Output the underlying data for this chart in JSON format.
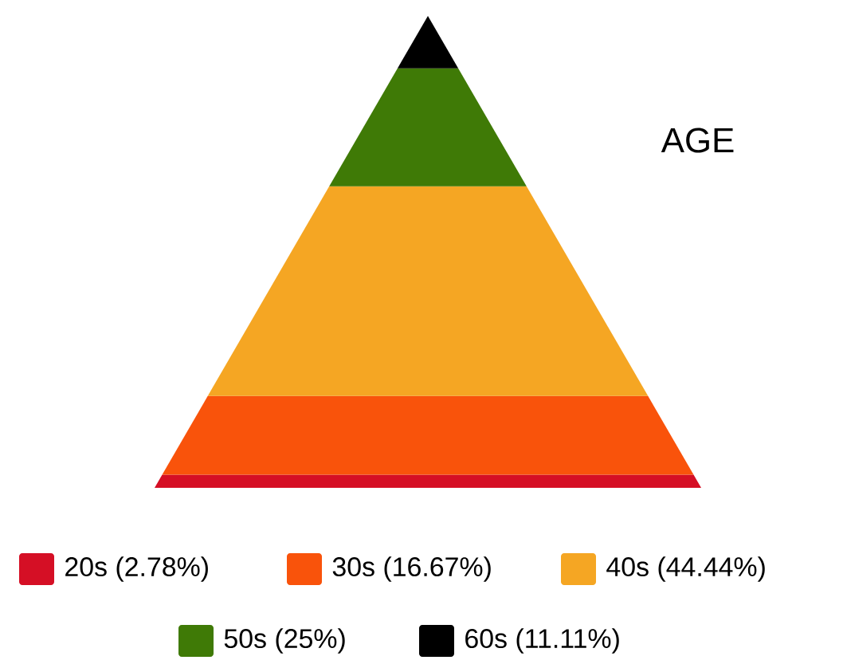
{
  "chart_data": {
    "type": "other",
    "title": "AGE",
    "categories": [
      "20s",
      "30s",
      "40s",
      "50s",
      "60s"
    ],
    "values": [
      2.78,
      16.67,
      44.44,
      25,
      11.11
    ],
    "value_labels": [
      "(2.78%)",
      "(16.67%)",
      "(44.44%)",
      "(25%)",
      "(11.11%)"
    ],
    "colors": [
      "#d50f25",
      "#f9530b",
      "#f5a623",
      "#3f7a06",
      "#000000"
    ]
  }
}
